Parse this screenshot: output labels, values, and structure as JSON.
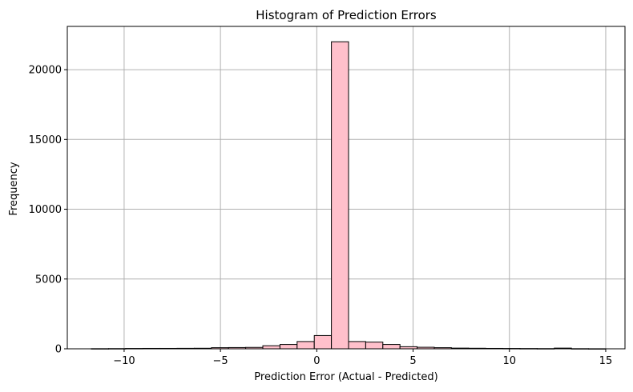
{
  "chart_data": {
    "type": "bar",
    "title": "Histogram of Prediction Errors",
    "xlabel": "Prediction Error (Actual - Predicted)",
    "ylabel": "Frequency",
    "xlim": [
      -12.95,
      16.0
    ],
    "ylim": [
      0,
      23100
    ],
    "xticks": [
      -10,
      -5,
      0,
      5,
      10,
      15
    ],
    "xtick_labels": [
      "−10",
      "−5",
      "0",
      "5",
      "10",
      "15"
    ],
    "yticks": [
      0,
      5000,
      10000,
      15000,
      20000
    ],
    "ytick_labels": [
      "0",
      "5000",
      "10000",
      "15000",
      "20000"
    ],
    "grid": true,
    "bar_color": "#ffc0cb",
    "edge_color": "#000000",
    "bins": {
      "start": -11.7,
      "width": 0.89,
      "counts": [
        10,
        15,
        25,
        30,
        30,
        35,
        40,
        80,
        90,
        100,
        220,
        310,
        520,
        950,
        22000,
        520,
        480,
        310,
        150,
        110,
        80,
        50,
        40,
        30,
        25,
        20,
        15,
        50,
        10,
        5
      ]
    }
  }
}
